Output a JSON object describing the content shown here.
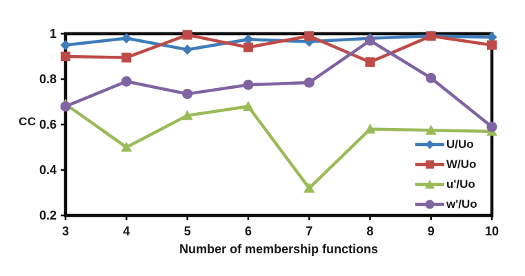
{
  "chart_data": {
    "type": "line",
    "title": "",
    "xlabel": "Number of membership functions",
    "ylabel": "CC",
    "x": [
      3,
      4,
      5,
      6,
      7,
      8,
      9,
      10
    ],
    "xlim": [
      3,
      10
    ],
    "ylim": [
      0.2,
      1.0
    ],
    "yticks": [
      1,
      0.8,
      0.6,
      0.4,
      0.2
    ],
    "ytick_labels": [
      "1",
      "0.8",
      "0.6",
      "0.4",
      "0.2"
    ],
    "grid": false,
    "legend_position": "inside-bottom-right",
    "series": [
      {
        "name": "U/Uo",
        "marker": "diamond",
        "color": "#3f7cba",
        "values": [
          0.95,
          0.98,
          0.93,
          0.975,
          0.965,
          0.98,
          0.99,
          0.985
        ]
      },
      {
        "name": "W/Uo",
        "marker": "square",
        "color": "#be4b48",
        "values": [
          0.9,
          0.895,
          0.995,
          0.94,
          0.99,
          0.875,
          0.99,
          0.95
        ]
      },
      {
        "name": "u'/Uo",
        "marker": "triangle",
        "color": "#9bbb59",
        "values": [
          0.69,
          0.5,
          0.64,
          0.68,
          0.32,
          0.58,
          0.575,
          0.57
        ]
      },
      {
        "name": "w'/Uo",
        "marker": "circle",
        "color": "#8064a2",
        "values": [
          0.68,
          0.79,
          0.735,
          0.775,
          0.785,
          0.97,
          0.805,
          0.59
        ]
      }
    ],
    "axis_color": "#0d0d0d",
    "text_color": "#171717"
  }
}
